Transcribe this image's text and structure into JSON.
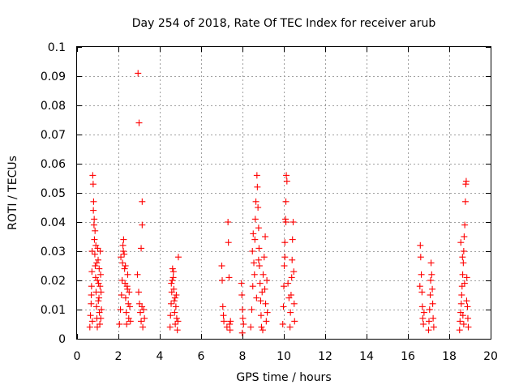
{
  "chart_data": {
    "type": "scatter",
    "title": "Day 254 of 2018, Rate Of TEC Index for receiver arub",
    "xlabel": "GPS time / hours",
    "ylabel": "ROTI / TECUs",
    "xlim": [
      0,
      20
    ],
    "ylim": [
      0,
      0.1
    ],
    "x_ticks": [
      0,
      2,
      4,
      6,
      8,
      10,
      12,
      14,
      16,
      18,
      20
    ],
    "x_tick_labels": [
      "0",
      "2",
      "4",
      "6",
      "8",
      "10",
      "12",
      "14",
      "16",
      "18",
      "20"
    ],
    "y_ticks": [
      0,
      0.01,
      0.02,
      0.03,
      0.04,
      0.05,
      0.06,
      0.07,
      0.08,
      0.09,
      0.1
    ],
    "y_tick_labels": [
      "0",
      "0.01",
      "0.02",
      "0.03",
      "0.04",
      "0.05",
      "0.06",
      "0.07",
      "0.08",
      "0.09",
      "0.1"
    ],
    "grid": true,
    "marker": "+",
    "marker_color": "#ff0000",
    "series": [
      {
        "name": "ROTI",
        "points": [
          [
            0.62,
            0.004
          ],
          [
            0.65,
            0.008
          ],
          [
            0.68,
            0.012
          ],
          [
            0.7,
            0.018
          ],
          [
            0.72,
            0.023
          ],
          [
            0.74,
            0.006
          ],
          [
            0.76,
            0.056
          ],
          [
            0.78,
            0.053
          ],
          [
            0.8,
            0.047
          ],
          [
            0.82,
            0.039
          ],
          [
            0.84,
            0.034
          ],
          [
            0.86,
            0.029
          ],
          [
            0.88,
            0.025
          ],
          [
            0.9,
            0.021
          ],
          [
            0.92,
            0.016
          ],
          [
            0.94,
            0.011
          ],
          [
            0.96,
            0.007
          ],
          [
            0.98,
            0.004
          ],
          [
            1.0,
            0.031
          ],
          [
            1.02,
            0.027
          ],
          [
            1.04,
            0.019
          ],
          [
            1.06,
            0.014
          ],
          [
            1.08,
            0.009
          ],
          [
            1.1,
            0.005
          ],
          [
            1.12,
            0.03
          ],
          [
            1.14,
            0.022
          ],
          [
            1.16,
            0.016
          ],
          [
            1.18,
            0.01
          ],
          [
            0.79,
            0.044
          ],
          [
            0.83,
            0.041
          ],
          [
            0.87,
            0.037
          ],
          [
            0.91,
            0.032
          ],
          [
            0.95,
            0.026
          ],
          [
            0.99,
            0.02
          ],
          [
            1.03,
            0.013
          ],
          [
            0.73,
            0.03
          ],
          [
            0.69,
            0.015
          ],
          [
            1.07,
            0.024
          ],
          [
            1.11,
            0.018
          ],
          [
            1.15,
            0.007
          ],
          [
            2.05,
            0.005
          ],
          [
            2.1,
            0.01
          ],
          [
            2.15,
            0.015
          ],
          [
            2.18,
            0.02
          ],
          [
            2.2,
            0.026
          ],
          [
            2.22,
            0.032
          ],
          [
            2.25,
            0.034
          ],
          [
            2.28,
            0.029
          ],
          [
            2.3,
            0.024
          ],
          [
            2.32,
            0.019
          ],
          [
            2.35,
            0.014
          ],
          [
            2.38,
            0.009
          ],
          [
            2.4,
            0.005
          ],
          [
            2.42,
            0.018
          ],
          [
            2.45,
            0.022
          ],
          [
            2.48,
            0.012
          ],
          [
            2.5,
            0.007
          ],
          [
            2.52,
            0.016
          ],
          [
            2.55,
            0.011
          ],
          [
            2.58,
            0.006
          ],
          [
            2.12,
            0.028
          ],
          [
            2.24,
            0.03
          ],
          [
            2.34,
            0.025
          ],
          [
            2.44,
            0.017
          ],
          [
            2.95,
            0.091
          ],
          [
            3.0,
            0.074
          ],
          [
            3.15,
            0.047
          ],
          [
            3.15,
            0.039
          ],
          [
            3.1,
            0.031
          ],
          [
            2.92,
            0.022
          ],
          [
            2.98,
            0.016
          ],
          [
            3.02,
            0.012
          ],
          [
            3.06,
            0.009
          ],
          [
            3.1,
            0.006
          ],
          [
            3.14,
            0.011
          ],
          [
            3.18,
            0.004
          ],
          [
            3.22,
            0.01
          ],
          [
            3.26,
            0.007
          ],
          [
            4.5,
            0.004
          ],
          [
            4.52,
            0.008
          ],
          [
            4.55,
            0.012
          ],
          [
            4.58,
            0.016
          ],
          [
            4.6,
            0.02
          ],
          [
            4.62,
            0.024
          ],
          [
            4.65,
            0.021
          ],
          [
            4.68,
            0.017
          ],
          [
            4.7,
            0.013
          ],
          [
            4.72,
            0.009
          ],
          [
            4.75,
            0.005
          ],
          [
            4.78,
            0.011
          ],
          [
            4.8,
            0.015
          ],
          [
            4.82,
            0.007
          ],
          [
            4.85,
            0.003
          ],
          [
            4.88,
            0.006
          ],
          [
            4.9,
            0.028
          ],
          [
            4.56,
            0.019
          ],
          [
            4.66,
            0.023
          ],
          [
            4.74,
            0.014
          ],
          [
            7.0,
            0.025
          ],
          [
            7.02,
            0.02
          ],
          [
            7.05,
            0.011
          ],
          [
            7.08,
            0.008
          ],
          [
            7.1,
            0.006
          ],
          [
            7.3,
            0.04
          ],
          [
            7.32,
            0.033
          ],
          [
            7.35,
            0.021
          ],
          [
            7.38,
            0.005
          ],
          [
            7.4,
            0.003
          ],
          [
            7.42,
            0.006
          ],
          [
            7.25,
            0.004
          ],
          [
            7.95,
            0.019
          ],
          [
            7.97,
            0.015
          ],
          [
            8.0,
            0.01
          ],
          [
            8.02,
            0.007
          ],
          [
            8.05,
            0.005
          ],
          [
            7.99,
            0.002
          ],
          [
            8.4,
            0.004
          ],
          [
            8.45,
            0.01
          ],
          [
            8.5,
            0.018
          ],
          [
            8.55,
            0.026
          ],
          [
            8.6,
            0.034
          ],
          [
            8.62,
            0.041
          ],
          [
            8.65,
            0.047
          ],
          [
            8.7,
            0.056
          ],
          [
            8.72,
            0.052
          ],
          [
            8.75,
            0.045
          ],
          [
            8.78,
            0.038
          ],
          [
            8.8,
            0.031
          ],
          [
            8.82,
            0.025
          ],
          [
            8.85,
            0.019
          ],
          [
            8.88,
            0.013
          ],
          [
            8.9,
            0.008
          ],
          [
            8.92,
            0.004
          ],
          [
            8.95,
            0.016
          ],
          [
            9.0,
            0.022
          ],
          [
            9.05,
            0.028
          ],
          [
            9.1,
            0.035
          ],
          [
            9.12,
            0.012
          ],
          [
            9.15,
            0.006
          ],
          [
            9.18,
            0.02
          ],
          [
            9.2,
            0.009
          ],
          [
            8.48,
            0.03
          ],
          [
            8.58,
            0.022
          ],
          [
            8.68,
            0.014
          ],
          [
            8.78,
            0.027
          ],
          [
            8.98,
            0.003
          ],
          [
            9.08,
            0.017
          ],
          [
            8.52,
            0.036
          ],
          [
            9.95,
            0.005
          ],
          [
            9.98,
            0.011
          ],
          [
            10.0,
            0.018
          ],
          [
            10.02,
            0.025
          ],
          [
            10.05,
            0.033
          ],
          [
            10.08,
            0.041
          ],
          [
            10.1,
            0.047
          ],
          [
            10.12,
            0.056
          ],
          [
            10.15,
            0.054
          ],
          [
            10.1,
            0.04
          ],
          [
            10.05,
            0.028
          ],
          [
            10.3,
            0.004
          ],
          [
            10.32,
            0.009
          ],
          [
            10.35,
            0.015
          ],
          [
            10.38,
            0.021
          ],
          [
            10.4,
            0.027
          ],
          [
            10.42,
            0.034
          ],
          [
            10.45,
            0.04
          ],
          [
            10.48,
            0.023
          ],
          [
            10.5,
            0.012
          ],
          [
            10.52,
            0.006
          ],
          [
            10.2,
            0.019
          ],
          [
            10.25,
            0.014
          ],
          [
            16.6,
            0.032
          ],
          [
            16.62,
            0.028
          ],
          [
            16.65,
            0.022
          ],
          [
            16.68,
            0.016
          ],
          [
            16.7,
            0.011
          ],
          [
            16.72,
            0.007
          ],
          [
            16.75,
            0.005
          ],
          [
            16.58,
            0.018
          ],
          [
            16.78,
            0.009
          ],
          [
            17.0,
            0.003
          ],
          [
            17.02,
            0.006
          ],
          [
            17.05,
            0.01
          ],
          [
            17.08,
            0.015
          ],
          [
            17.1,
            0.02
          ],
          [
            17.12,
            0.026
          ],
          [
            17.15,
            0.022
          ],
          [
            17.18,
            0.017
          ],
          [
            17.2,
            0.012
          ],
          [
            17.22,
            0.007
          ],
          [
            17.25,
            0.004
          ],
          [
            18.5,
            0.003
          ],
          [
            18.52,
            0.006
          ],
          [
            18.55,
            0.009
          ],
          [
            18.58,
            0.012
          ],
          [
            18.6,
            0.015
          ],
          [
            18.62,
            0.018
          ],
          [
            18.65,
            0.022
          ],
          [
            18.68,
            0.026
          ],
          [
            18.7,
            0.03
          ],
          [
            18.72,
            0.035
          ],
          [
            18.75,
            0.039
          ],
          [
            18.78,
            0.047
          ],
          [
            18.8,
            0.053
          ],
          [
            18.82,
            0.054
          ],
          [
            18.85,
            0.021
          ],
          [
            18.88,
            0.011
          ],
          [
            18.9,
            0.007
          ],
          [
            18.92,
            0.004
          ],
          [
            18.56,
            0.033
          ],
          [
            18.64,
            0.028
          ],
          [
            18.74,
            0.019
          ],
          [
            18.84,
            0.013
          ],
          [
            18.66,
            0.008
          ],
          [
            18.7,
            0.005
          ]
        ]
      }
    ]
  }
}
